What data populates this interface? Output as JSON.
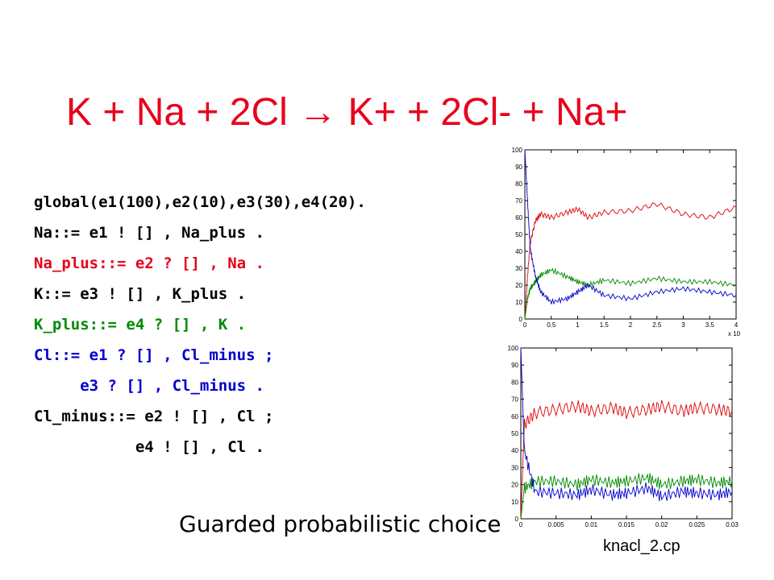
{
  "slide": {
    "title_left": "K + Na + 2Cl",
    "title_arrow": "→",
    "title_right": "K+ + 2Cl- + Na+",
    "caption": "Guarded probabilistic choice",
    "filename": "knacl_2.cp"
  },
  "colors": {
    "title": "#e8001c",
    "black": "#000000",
    "red_code": "#e8001c",
    "green_code": "#008a00",
    "blue_code": "#0000cc",
    "series_red": "#dd0000",
    "series_green": "#008800",
    "series_blue": "#0000cc"
  },
  "code_lines": [
    {
      "text": "global(e1(100),e2(10),e3(30),e4(20).",
      "color": "#000000"
    },
    {
      "text": "Na::= e1 ! [] , Na_plus .",
      "color": "#000000"
    },
    {
      "text": "Na_plus::= e2 ? [] , Na .",
      "color": "#e8001c"
    },
    {
      "text": "K::= e3 ! [] , K_plus .",
      "color": "#000000"
    },
    {
      "text": "K_plus::= e4 ? [] , K .",
      "color": "#008a00"
    },
    {
      "text": "Cl::= e1 ? [] , Cl_minus ;",
      "color": "#0000cc"
    },
    {
      "text": "     e3 ? [] , Cl_minus .",
      "color": "#0000cc"
    },
    {
      "text": "Cl_minus::= e2 ! [] , Cl ;",
      "color": "#000000"
    },
    {
      "text": "           e4 ! [] , Cl .",
      "color": "#000000"
    }
  ],
  "chart_data": [
    {
      "type": "line",
      "ylim": [
        0,
        100
      ],
      "xlim": [
        0,
        4
      ],
      "x_ticks": [
        "0",
        "0.5",
        "1",
        "1.5",
        "2",
        "2.5",
        "3",
        "3.5",
        "4"
      ],
      "y_ticks": [
        "0",
        "10",
        "20",
        "30",
        "40",
        "50",
        "60",
        "70",
        "80",
        "90",
        "100"
      ],
      "x_exponent_label": "x 10",
      "grid": false,
      "series": [
        {
          "color": "#dd0000",
          "x": [
            0,
            0.05,
            0.1,
            0.2,
            0.3,
            0.5,
            0.8,
            1.0,
            1.2,
            1.5,
            2.0,
            2.5,
            3.0,
            3.5,
            4.0
          ],
          "values": [
            0,
            25,
            45,
            58,
            62,
            60,
            63,
            65,
            60,
            63,
            64,
            68,
            62,
            60,
            66
          ]
        },
        {
          "color": "#008800",
          "x": [
            0,
            0.05,
            0.1,
            0.2,
            0.3,
            0.5,
            0.8,
            1.0,
            1.2,
            1.5,
            2.0,
            2.5,
            3.0,
            3.5,
            4.0
          ],
          "values": [
            0,
            12,
            18,
            22,
            26,
            29,
            25,
            22,
            20,
            23,
            21,
            24,
            22,
            22,
            20
          ]
        },
        {
          "color": "#0000cc",
          "x": [
            0,
            0.05,
            0.1,
            0.2,
            0.3,
            0.5,
            0.8,
            1.0,
            1.2,
            1.5,
            2.0,
            2.5,
            3.0,
            3.5,
            4.0
          ],
          "values": [
            100,
            70,
            42,
            25,
            16,
            10,
            12,
            16,
            20,
            14,
            12,
            16,
            18,
            16,
            14
          ]
        }
      ]
    },
    {
      "type": "line",
      "ylim": [
        0,
        100
      ],
      "xlim": [
        0,
        0.03
      ],
      "x_ticks": [
        "0",
        "0.005",
        "0.01",
        "0.015",
        "0.02",
        "0.025",
        "0.03"
      ],
      "y_ticks": [
        "0",
        "10",
        "20",
        "30",
        "40",
        "50",
        "60",
        "70",
        "80",
        "90",
        "100"
      ],
      "grid": false,
      "series": [
        {
          "color": "#dd0000",
          "x": [
            0,
            0.0005,
            0.002,
            0.005,
            0.008,
            0.01,
            0.013,
            0.015,
            0.018,
            0.02,
            0.023,
            0.025,
            0.028,
            0.03
          ],
          "values": [
            0,
            55,
            62,
            64,
            66,
            63,
            65,
            62,
            64,
            66,
            63,
            65,
            64,
            63
          ]
        },
        {
          "color": "#008800",
          "x": [
            0,
            0.0005,
            0.002,
            0.005,
            0.008,
            0.01,
            0.013,
            0.015,
            0.018,
            0.02,
            0.023,
            0.025,
            0.028,
            0.03
          ],
          "values": [
            0,
            18,
            22,
            22,
            20,
            23,
            21,
            22,
            24,
            20,
            22,
            23,
            21,
            22
          ]
        },
        {
          "color": "#0000cc",
          "x": [
            0,
            0.0005,
            0.002,
            0.005,
            0.008,
            0.01,
            0.013,
            0.015,
            0.018,
            0.02,
            0.023,
            0.025,
            0.028,
            0.03
          ],
          "values": [
            100,
            40,
            16,
            15,
            14,
            17,
            14,
            15,
            18,
            13,
            16,
            15,
            14,
            16
          ]
        }
      ]
    }
  ]
}
